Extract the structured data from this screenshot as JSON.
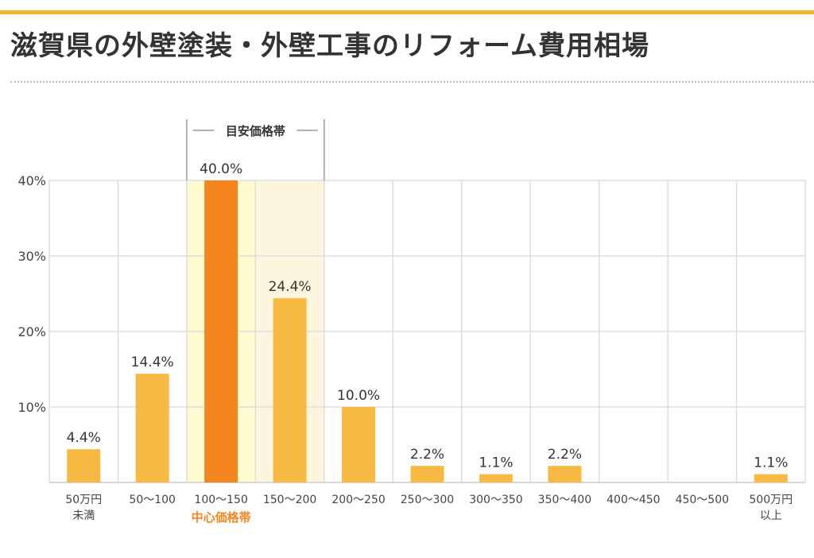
{
  "page": {
    "title": "滋賀県の外壁塗装・外壁工事のリフォーム費用相場",
    "accent_color": "#f0b431"
  },
  "chart_data": {
    "type": "bar",
    "categories": [
      "50万円\n未満",
      "50〜100",
      "100〜150",
      "150〜200",
      "200〜250",
      "250〜300",
      "300〜350",
      "350〜400",
      "400〜450",
      "450〜500",
      "500万円\n以上"
    ],
    "values": [
      4.4,
      14.4,
      40.0,
      24.4,
      10.0,
      2.2,
      1.1,
      2.2,
      0,
      0,
      1.1
    ],
    "value_labels": [
      "4.4%",
      "14.4%",
      "40.0%",
      "24.4%",
      "10.0%",
      "2.2%",
      "1.1%",
      "2.2%",
      "",
      "",
      "1.1%"
    ],
    "yticks": [
      10,
      20,
      30,
      40
    ],
    "ytick_labels": [
      "10%",
      "20%",
      "30%",
      "40%"
    ],
    "ylim": [
      0,
      40
    ],
    "grid": true,
    "bar_color": "#f7b942",
    "highlight_index": 2,
    "highlight_color": "#f5861f",
    "band_indices": [
      2,
      3
    ],
    "band_colors": [
      "#fefbd1",
      "#fdf6de"
    ],
    "band_label": "目安価格帯",
    "center_label": "中心価格帯",
    "center_label_color": "#f5861f"
  }
}
